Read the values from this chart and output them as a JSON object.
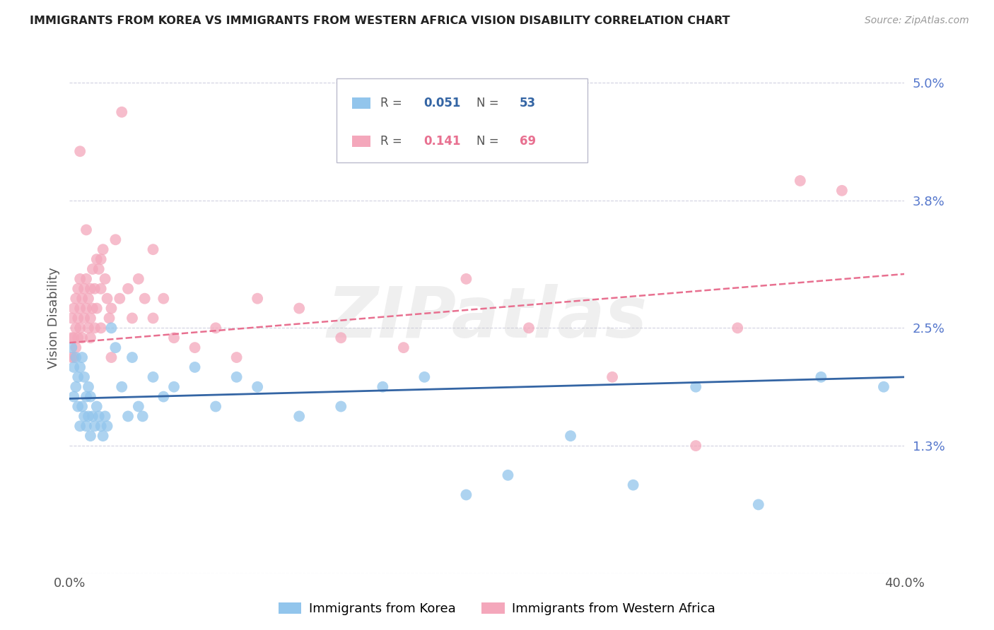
{
  "title": "IMMIGRANTS FROM KOREA VS IMMIGRANTS FROM WESTERN AFRICA VISION DISABILITY CORRELATION CHART",
  "source": "Source: ZipAtlas.com",
  "ylabel": "Vision Disability",
  "ytick_vals": [
    0.013,
    0.025,
    0.038,
    0.05
  ],
  "ytick_labels": [
    "1.3%",
    "2.5%",
    "3.8%",
    "5.0%"
  ],
  "xlim": [
    0.0,
    0.4
  ],
  "ylim": [
    0.0,
    0.052
  ],
  "korea_R": 0.051,
  "korea_N": 53,
  "africa_R": 0.141,
  "africa_N": 69,
  "korea_color": "#92C5EC",
  "africa_color": "#F4A7BB",
  "korea_line_color": "#3465A4",
  "africa_line_color": "#E87090",
  "background_color": "#FFFFFF",
  "grid_color": "#CCCCDD",
  "watermark": "ZIPatlas",
  "korea_x": [
    0.001,
    0.002,
    0.002,
    0.003,
    0.003,
    0.004,
    0.004,
    0.005,
    0.005,
    0.006,
    0.006,
    0.007,
    0.007,
    0.008,
    0.008,
    0.009,
    0.009,
    0.01,
    0.01,
    0.011,
    0.012,
    0.013,
    0.014,
    0.015,
    0.016,
    0.017,
    0.018,
    0.02,
    0.022,
    0.025,
    0.028,
    0.03,
    0.033,
    0.035,
    0.04,
    0.045,
    0.05,
    0.06,
    0.07,
    0.08,
    0.09,
    0.11,
    0.13,
    0.15,
    0.17,
    0.19,
    0.21,
    0.24,
    0.27,
    0.3,
    0.33,
    0.36,
    0.39
  ],
  "korea_y": [
    0.023,
    0.021,
    0.018,
    0.022,
    0.019,
    0.02,
    0.017,
    0.021,
    0.015,
    0.022,
    0.017,
    0.02,
    0.016,
    0.018,
    0.015,
    0.019,
    0.016,
    0.018,
    0.014,
    0.016,
    0.015,
    0.017,
    0.016,
    0.015,
    0.014,
    0.016,
    0.015,
    0.025,
    0.023,
    0.019,
    0.016,
    0.022,
    0.017,
    0.016,
    0.02,
    0.018,
    0.019,
    0.021,
    0.017,
    0.02,
    0.019,
    0.016,
    0.017,
    0.019,
    0.02,
    0.008,
    0.01,
    0.014,
    0.009,
    0.019,
    0.007,
    0.02,
    0.019
  ],
  "africa_x": [
    0.001,
    0.001,
    0.001,
    0.002,
    0.002,
    0.002,
    0.003,
    0.003,
    0.003,
    0.004,
    0.004,
    0.004,
    0.005,
    0.005,
    0.005,
    0.006,
    0.006,
    0.007,
    0.007,
    0.008,
    0.008,
    0.009,
    0.009,
    0.01,
    0.01,
    0.01,
    0.011,
    0.011,
    0.012,
    0.012,
    0.013,
    0.013,
    0.014,
    0.015,
    0.015,
    0.016,
    0.017,
    0.018,
    0.019,
    0.02,
    0.022,
    0.024,
    0.025,
    0.028,
    0.03,
    0.033,
    0.036,
    0.04,
    0.045,
    0.05,
    0.06,
    0.07,
    0.08,
    0.09,
    0.11,
    0.13,
    0.16,
    0.19,
    0.22,
    0.26,
    0.3,
    0.32,
    0.35,
    0.37,
    0.04,
    0.005,
    0.008,
    0.015,
    0.02
  ],
  "africa_y": [
    0.024,
    0.022,
    0.026,
    0.024,
    0.027,
    0.022,
    0.025,
    0.028,
    0.023,
    0.026,
    0.029,
    0.024,
    0.027,
    0.03,
    0.025,
    0.028,
    0.024,
    0.026,
    0.029,
    0.027,
    0.03,
    0.025,
    0.028,
    0.026,
    0.029,
    0.024,
    0.031,
    0.027,
    0.029,
    0.025,
    0.032,
    0.027,
    0.031,
    0.029,
    0.025,
    0.033,
    0.03,
    0.028,
    0.026,
    0.027,
    0.034,
    0.028,
    0.047,
    0.029,
    0.026,
    0.03,
    0.028,
    0.026,
    0.028,
    0.024,
    0.023,
    0.025,
    0.022,
    0.028,
    0.027,
    0.024,
    0.023,
    0.03,
    0.025,
    0.02,
    0.013,
    0.025,
    0.04,
    0.039,
    0.033,
    0.043,
    0.035,
    0.032,
    0.022
  ]
}
